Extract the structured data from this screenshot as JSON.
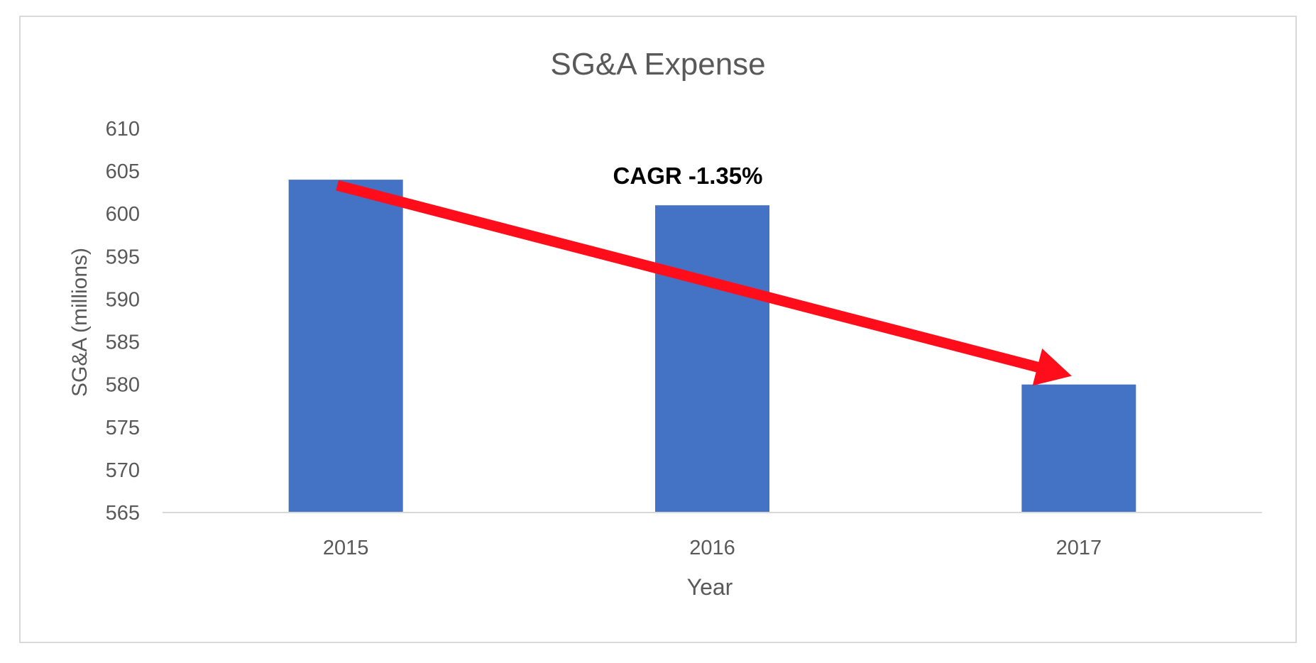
{
  "chart_data": {
    "type": "bar",
    "title": "SG&A Expense",
    "xlabel": "Year",
    "ylabel": "SG&A (millions)",
    "categories": [
      "2015",
      "2016",
      "2017"
    ],
    "values": [
      604,
      601,
      580
    ],
    "ylim": [
      565,
      610
    ],
    "yticks": [
      610,
      605,
      600,
      595,
      590,
      585,
      580,
      575,
      570,
      565
    ],
    "grid": false,
    "legend": "none",
    "annotation": {
      "text": "CAGR -1.35%",
      "arrow_from": {
        "category": "2015",
        "value": 604
      },
      "arrow_to": {
        "category": "2017",
        "value": 580
      }
    },
    "colors": {
      "bar": "#4472c4",
      "arrow": "#ff0d1a",
      "text": "#595959",
      "annotation_text": "#000000",
      "axis": "#d9d9d9",
      "frame": "#d9d9d9"
    }
  }
}
